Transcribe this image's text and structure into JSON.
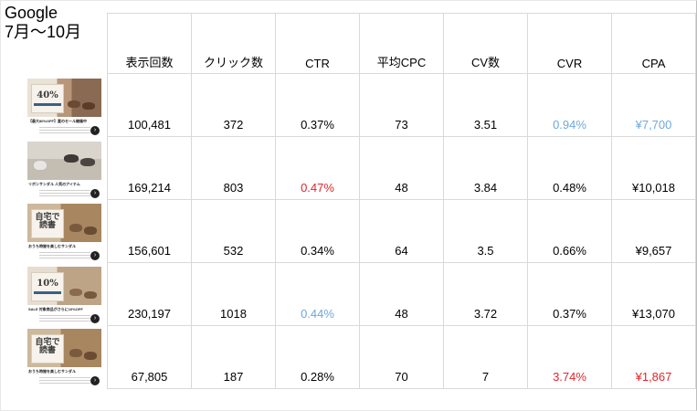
{
  "title": {
    "line1": "Google",
    "line2": "7月〜10月"
  },
  "table": {
    "headers": [
      "表示回数",
      "クリック数",
      "CTR",
      "平均CPC",
      "CV数",
      "CVR",
      "CPA"
    ],
    "rows": [
      {
        "impressions": "100,481",
        "clicks": "372",
        "ctr": "0.37%",
        "cpc": "73",
        "cv": "3.51",
        "cvr": "0.94%",
        "cpa": "¥7,700"
      },
      {
        "impressions": "169,214",
        "clicks": "803",
        "ctr": "0.47%",
        "cpc": "48",
        "cv": "3.84",
        "cvr": "0.48%",
        "cpa": "¥10,018"
      },
      {
        "impressions": "156,601",
        "clicks": "532",
        "ctr": "0.34%",
        "cpc": "64",
        "cv": "3.5",
        "cvr": "0.66%",
        "cpa": "¥9,657"
      },
      {
        "impressions": "230,197",
        "clicks": "1018",
        "ctr": "0.44%",
        "cpc": "48",
        "cv": "3.72",
        "cvr": "0.37%",
        "cpa": "¥13,070"
      },
      {
        "impressions": "67,805",
        "clicks": "187",
        "ctr": "0.28%",
        "cpc": "70",
        "cv": "7",
        "cvr": "3.74%",
        "cpa": "¥1,867"
      }
    ]
  },
  "ads": [
    {
      "card_text": "40%",
      "caption": "【最大80%OFF】夏のセール開催中",
      "icon": "next-arrow-icon"
    },
    {
      "card_text": "",
      "caption": "リボンサンダル 人気のアイテム",
      "icon": "next-arrow-icon"
    },
    {
      "card_text": "自宅で読書",
      "caption": "おうち時間を楽しむサンダル",
      "icon": "next-arrow-icon"
    },
    {
      "card_text": "10%",
      "caption": "SALE 対象商品がさらに10%OFF",
      "icon": "next-arrow-icon"
    },
    {
      "card_text": "自宅で読書",
      "caption": "おうち時間を楽しむサンダル",
      "icon": "next-arrow-icon"
    }
  ],
  "colors": {
    "highlight_blue": "#6fa8dc",
    "highlight_red": "#e0262b",
    "grid": "#d9d9d9"
  }
}
